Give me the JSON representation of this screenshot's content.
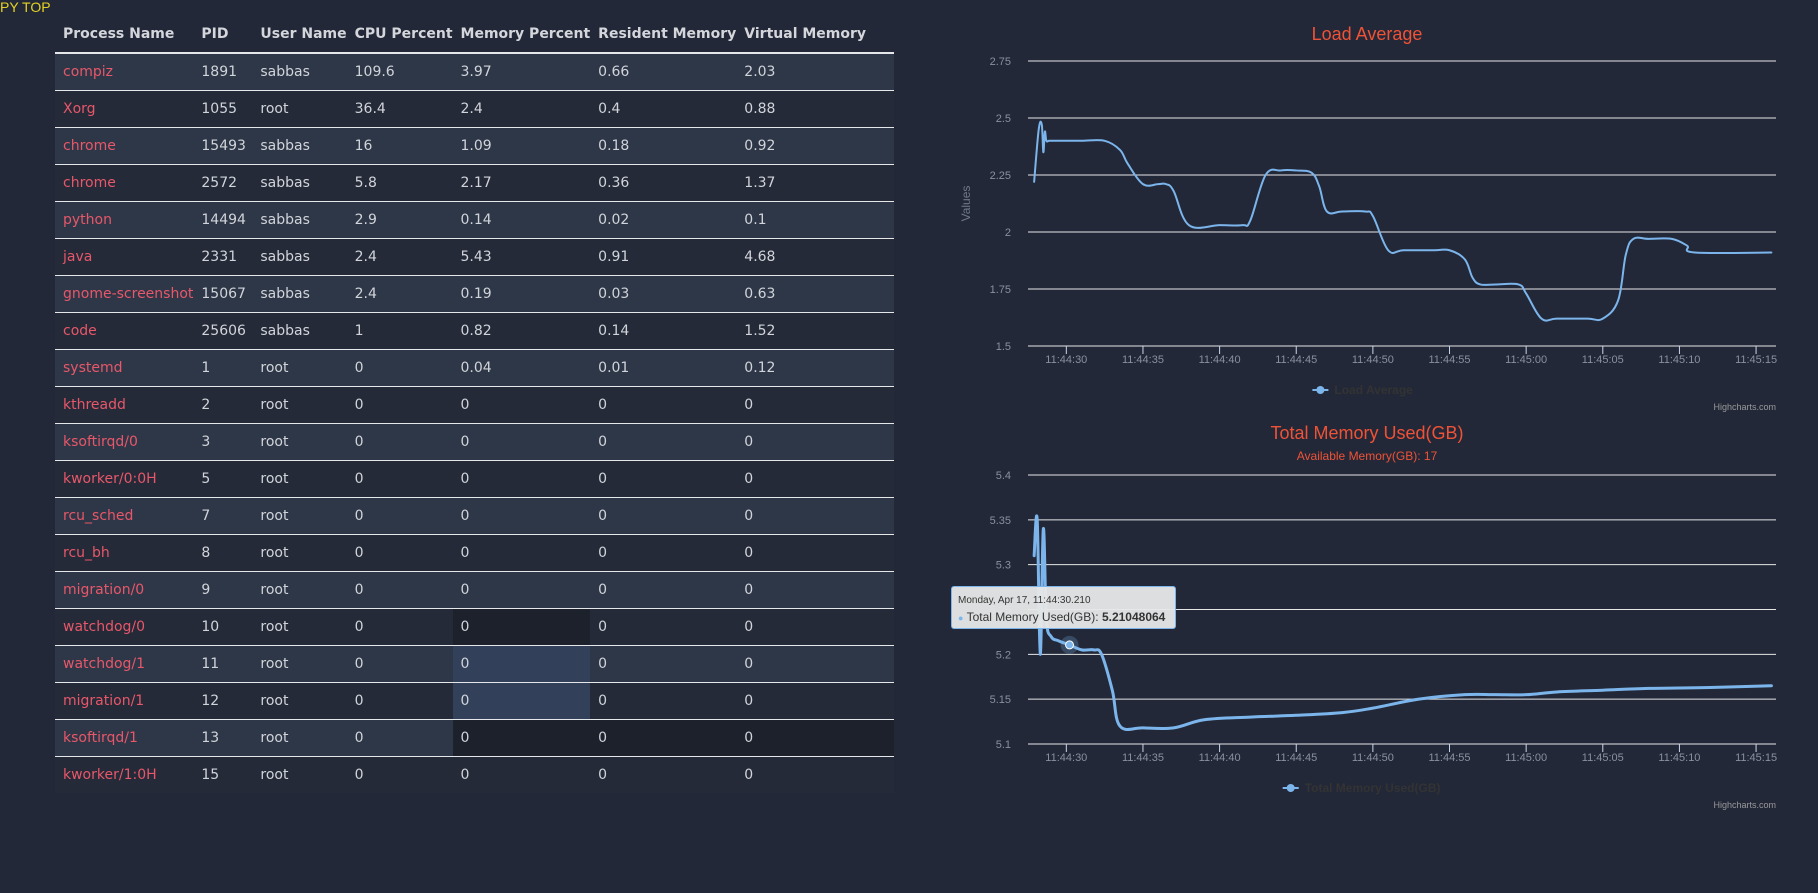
{
  "app": {
    "title": "PY TOP"
  },
  "table": {
    "headers": [
      "Process Name",
      "PID",
      "User Name",
      "CPU Percent",
      "Memory Percent",
      "Resident Memory",
      "Virtual Memory"
    ],
    "rows": [
      [
        "compiz",
        "1891",
        "sabbas",
        "109.6",
        "3.97",
        "0.66",
        "2.03"
      ],
      [
        "Xorg",
        "1055",
        "root",
        "36.4",
        "2.4",
        "0.4",
        "0.88"
      ],
      [
        "chrome",
        "15493",
        "sabbas",
        "16",
        "1.09",
        "0.18",
        "0.92"
      ],
      [
        "chrome",
        "2572",
        "sabbas",
        "5.8",
        "2.17",
        "0.36",
        "1.37"
      ],
      [
        "python",
        "14494",
        "sabbas",
        "2.9",
        "0.14",
        "0.02",
        "0.1"
      ],
      [
        "java",
        "2331",
        "sabbas",
        "2.4",
        "5.43",
        "0.91",
        "4.68"
      ],
      [
        "gnome-screenshot",
        "15067",
        "sabbas",
        "2.4",
        "0.19",
        "0.03",
        "0.63"
      ],
      [
        "code",
        "25606",
        "sabbas",
        "1",
        "0.82",
        "0.14",
        "1.52"
      ],
      [
        "systemd",
        "1",
        "root",
        "0",
        "0.04",
        "0.01",
        "0.12"
      ],
      [
        "kthreadd",
        "2",
        "root",
        "0",
        "0",
        "0",
        "0"
      ],
      [
        "ksoftirqd/0",
        "3",
        "root",
        "0",
        "0",
        "0",
        "0"
      ],
      [
        "kworker/0:0H",
        "5",
        "root",
        "0",
        "0",
        "0",
        "0"
      ],
      [
        "rcu_sched",
        "7",
        "root",
        "0",
        "0",
        "0",
        "0"
      ],
      [
        "rcu_bh",
        "8",
        "root",
        "0",
        "0",
        "0",
        "0"
      ],
      [
        "migration/0",
        "9",
        "root",
        "0",
        "0",
        "0",
        "0"
      ],
      [
        "watchdog/0",
        "10",
        "root",
        "0",
        "0",
        "0",
        "0"
      ],
      [
        "watchdog/1",
        "11",
        "root",
        "0",
        "0",
        "0",
        "0"
      ],
      [
        "migration/1",
        "12",
        "root",
        "0",
        "0",
        "0",
        "0"
      ],
      [
        "ksoftirqd/1",
        "13",
        "root",
        "0",
        "0",
        "0",
        "0"
      ],
      [
        "kworker/1:0H",
        "15",
        "root",
        "0",
        "0",
        "0",
        "0"
      ]
    ]
  },
  "colors": {
    "accent_title": "#f05236",
    "series": "#7cb5ec",
    "process_name": "#e8576a"
  },
  "credits": "Highcharts.com",
  "tooltip": {
    "date": "Monday, Apr 17, 11:44:30.210",
    "series_label": "Total Memory Used(GB):",
    "value": "5.21048064"
  },
  "chart_data": [
    {
      "type": "line",
      "title": "Load Average",
      "subtitle": "",
      "ylabel": "Values",
      "xlabel": "",
      "ylim": [
        1.5,
        2.75
      ],
      "y_ticks": [
        "1.5",
        "1.75",
        "2",
        "2.25",
        "2.5",
        "2.75"
      ],
      "x_ticks": [
        "11:44:30",
        "11:44:35",
        "11:44:40",
        "11:44:45",
        "11:44:50",
        "11:44:55",
        "11:45:00",
        "11:45:05",
        "11:45:10",
        "11:45:15"
      ],
      "xlim": [
        27.5,
        76.3
      ],
      "legend": "Load Average",
      "legend_position": "bottom-center",
      "series": [
        {
          "name": "Load Average",
          "x": [
            27.9,
            28.2,
            28.4,
            28.5,
            28.6,
            28.7,
            28.9,
            29.5,
            31.0,
            32.5,
            33.5,
            34.0,
            35.0,
            36.0,
            36.5,
            37.0,
            38.0,
            40.0,
            41.5,
            42.0,
            43.0,
            44.0,
            45.0,
            46.0,
            46.5,
            47.0,
            48.0,
            49.5,
            50.0,
            51.0,
            52.0,
            54.0,
            55.0,
            56.0,
            56.5,
            57.0,
            58.0,
            59.5,
            60.0,
            61.0,
            62.0,
            64.0,
            65.0,
            66.0,
            66.5,
            67.0,
            68.0,
            69.5,
            70.5,
            71.0,
            76.0
          ],
          "values": [
            2.22,
            2.45,
            2.47,
            2.35,
            2.44,
            2.4,
            2.4,
            2.4,
            2.4,
            2.4,
            2.36,
            2.3,
            2.21,
            2.21,
            2.21,
            2.18,
            2.03,
            2.03,
            2.03,
            2.05,
            2.25,
            2.27,
            2.27,
            2.26,
            2.2,
            2.09,
            2.09,
            2.09,
            2.07,
            1.92,
            1.92,
            1.92,
            1.92,
            1.88,
            1.8,
            1.77,
            1.77,
            1.77,
            1.73,
            1.62,
            1.62,
            1.62,
            1.62,
            1.7,
            1.9,
            1.97,
            1.97,
            1.97,
            1.94,
            1.91,
            1.91
          ]
        }
      ]
    },
    {
      "type": "line",
      "title": "Total Memory Used(GB)",
      "subtitle": "Available Memory(GB): 17",
      "ylabel": "",
      "xlabel": "",
      "ylim": [
        5.1,
        5.4
      ],
      "y_ticks": [
        "5.1",
        "5.15",
        "5.2",
        "5.25",
        "5.3",
        "5.35",
        "5.4"
      ],
      "x_ticks": [
        "11:44:30",
        "11:44:35",
        "11:44:40",
        "11:44:45",
        "11:44:50",
        "11:44:55",
        "11:45:00",
        "11:45:05",
        "11:45:10",
        "11:45:15"
      ],
      "xlim": [
        27.5,
        76.3
      ],
      "legend": "Total Memory Used(GB)",
      "legend_position": "bottom-center",
      "hover_x": 30.21,
      "series": [
        {
          "name": "Total Memory Used(GB)",
          "x": [
            27.9,
            28.1,
            28.3,
            28.5,
            28.7,
            29.0,
            29.5,
            30.2,
            31.0,
            31.8,
            32.3,
            33.0,
            33.5,
            35.0,
            37.0,
            39.0,
            42.0,
            45.0,
            48.0,
            50.0,
            53.0,
            56.0,
            58.0,
            60.0,
            62.0,
            65.0,
            68.0,
            72.0,
            76.0
          ],
          "values": [
            5.31,
            5.35,
            5.2,
            5.34,
            5.24,
            5.22,
            5.215,
            5.2105,
            5.205,
            5.205,
            5.2,
            5.16,
            5.12,
            5.118,
            5.118,
            5.127,
            5.13,
            5.132,
            5.135,
            5.14,
            5.15,
            5.155,
            5.155,
            5.155,
            5.158,
            5.16,
            5.162,
            5.163,
            5.165
          ]
        }
      ]
    }
  ]
}
